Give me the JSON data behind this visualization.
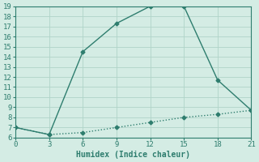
{
  "line1_x": [
    0,
    3,
    6,
    9,
    12,
    15,
    18,
    21
  ],
  "line1_y": [
    7.0,
    6.3,
    14.5,
    17.3,
    19.0,
    19.0,
    11.7,
    8.7
  ],
  "line2_x": [
    0,
    3,
    6,
    9,
    12,
    15,
    18,
    21
  ],
  "line2_y": [
    7.0,
    6.3,
    6.5,
    7.0,
    7.5,
    8.0,
    8.3,
    8.7
  ],
  "line_color": "#2e7d6e",
  "bg_color": "#d4ece4",
  "grid_color": "#b0d4c8",
  "xlabel": "Humidex (Indice chaleur)",
  "xlim": [
    0,
    21
  ],
  "ylim": [
    6,
    19
  ],
  "xticks": [
    0,
    3,
    6,
    9,
    12,
    15,
    18,
    21
  ],
  "yticks": [
    6,
    7,
    8,
    9,
    10,
    11,
    12,
    13,
    14,
    15,
    16,
    17,
    18,
    19
  ],
  "tick_fontsize": 6.5,
  "xlabel_fontsize": 7,
  "marker": "D",
  "markersize": 2.5,
  "linewidth": 1.0
}
